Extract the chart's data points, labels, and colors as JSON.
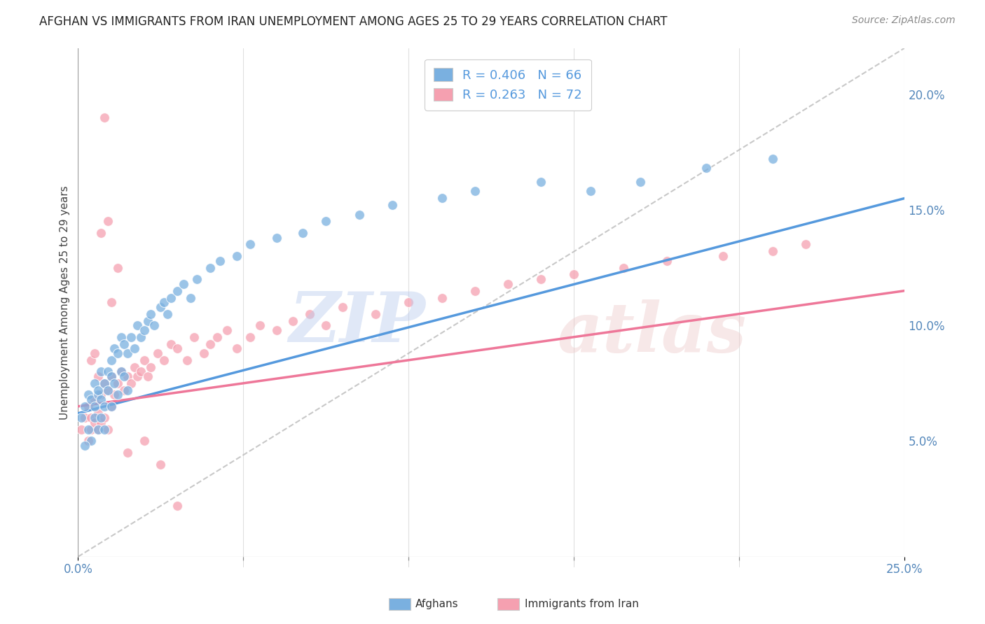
{
  "title": "AFGHAN VS IMMIGRANTS FROM IRAN UNEMPLOYMENT AMONG AGES 25 TO 29 YEARS CORRELATION CHART",
  "source": "Source: ZipAtlas.com",
  "ylabel": "Unemployment Among Ages 25 to 29 years",
  "xlim": [
    0.0,
    0.25
  ],
  "ylim": [
    0.0,
    0.22
  ],
  "legend_r1": "R = 0.406",
  "legend_n1": "N = 66",
  "legend_r2": "R = 0.263",
  "legend_n2": "N = 72",
  "afghan_color": "#7ab0e0",
  "iran_color": "#f5a0b0",
  "afghan_line_color": "#5599dd",
  "iran_line_color": "#ee7799",
  "ref_line_color": "#bbbbbb",
  "background_color": "#ffffff",
  "afghans_label": "Afghans",
  "iran_label": "Immigrants from Iran",
  "afghan_x": [
    0.001,
    0.002,
    0.003,
    0.003,
    0.004,
    0.004,
    0.005,
    0.005,
    0.005,
    0.006,
    0.006,
    0.006,
    0.007,
    0.007,
    0.007,
    0.008,
    0.008,
    0.008,
    0.009,
    0.009,
    0.01,
    0.01,
    0.01,
    0.011,
    0.011,
    0.012,
    0.012,
    0.013,
    0.013,
    0.014,
    0.014,
    0.015,
    0.015,
    0.016,
    0.017,
    0.018,
    0.019,
    0.02,
    0.021,
    0.022,
    0.023,
    0.025,
    0.026,
    0.027,
    0.028,
    0.03,
    0.032,
    0.034,
    0.036,
    0.04,
    0.043,
    0.048,
    0.052,
    0.06,
    0.068,
    0.075,
    0.085,
    0.095,
    0.11,
    0.12,
    0.14,
    0.155,
    0.17,
    0.19,
    0.21,
    0.002
  ],
  "afghan_y": [
    0.06,
    0.065,
    0.07,
    0.055,
    0.068,
    0.05,
    0.065,
    0.075,
    0.06,
    0.07,
    0.072,
    0.055,
    0.08,
    0.068,
    0.06,
    0.075,
    0.065,
    0.055,
    0.072,
    0.08,
    0.085,
    0.078,
    0.065,
    0.09,
    0.075,
    0.088,
    0.07,
    0.095,
    0.08,
    0.092,
    0.078,
    0.088,
    0.072,
    0.095,
    0.09,
    0.1,
    0.095,
    0.098,
    0.102,
    0.105,
    0.1,
    0.108,
    0.11,
    0.105,
    0.112,
    0.115,
    0.118,
    0.112,
    0.12,
    0.125,
    0.128,
    0.13,
    0.135,
    0.138,
    0.14,
    0.145,
    0.148,
    0.152,
    0.155,
    0.158,
    0.162,
    0.158,
    0.162,
    0.168,
    0.172,
    0.048
  ],
  "iran_x": [
    0.001,
    0.002,
    0.003,
    0.003,
    0.004,
    0.004,
    0.005,
    0.005,
    0.006,
    0.006,
    0.007,
    0.007,
    0.008,
    0.008,
    0.009,
    0.009,
    0.01,
    0.01,
    0.011,
    0.012,
    0.013,
    0.014,
    0.015,
    0.016,
    0.017,
    0.018,
    0.019,
    0.02,
    0.021,
    0.022,
    0.024,
    0.026,
    0.028,
    0.03,
    0.033,
    0.035,
    0.038,
    0.04,
    0.042,
    0.045,
    0.048,
    0.052,
    0.055,
    0.06,
    0.065,
    0.07,
    0.075,
    0.08,
    0.09,
    0.1,
    0.11,
    0.12,
    0.13,
    0.14,
    0.15,
    0.165,
    0.178,
    0.195,
    0.21,
    0.22,
    0.004,
    0.005,
    0.006,
    0.007,
    0.008,
    0.009,
    0.01,
    0.012,
    0.015,
    0.02,
    0.025,
    0.03
  ],
  "iran_y": [
    0.055,
    0.06,
    0.065,
    0.05,
    0.06,
    0.055,
    0.068,
    0.058,
    0.062,
    0.055,
    0.07,
    0.058,
    0.075,
    0.06,
    0.072,
    0.055,
    0.078,
    0.065,
    0.07,
    0.075,
    0.08,
    0.072,
    0.078,
    0.075,
    0.082,
    0.078,
    0.08,
    0.085,
    0.078,
    0.082,
    0.088,
    0.085,
    0.092,
    0.09,
    0.085,
    0.095,
    0.088,
    0.092,
    0.095,
    0.098,
    0.09,
    0.095,
    0.1,
    0.098,
    0.102,
    0.105,
    0.1,
    0.108,
    0.105,
    0.11,
    0.112,
    0.115,
    0.118,
    0.12,
    0.122,
    0.125,
    0.128,
    0.13,
    0.132,
    0.135,
    0.085,
    0.088,
    0.078,
    0.14,
    0.19,
    0.145,
    0.11,
    0.125,
    0.045,
    0.05,
    0.04,
    0.022
  ]
}
